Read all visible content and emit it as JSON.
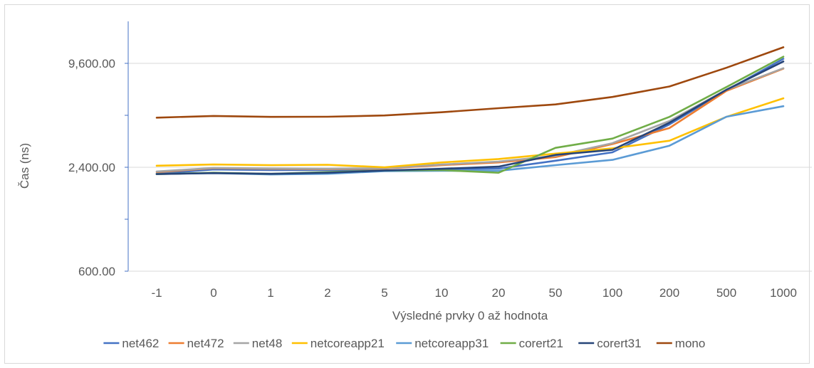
{
  "chart_data": {
    "type": "line",
    "title": "",
    "xlabel": "Výsledné prvky 0 až hodnota",
    "ylabel": "Čas (ns)",
    "y_scale": "log2",
    "ylim": [
      600,
      19200
    ],
    "y_ticks": [
      600,
      2400,
      9600
    ],
    "y_tick_labels": [
      "600.00",
      "2,400.00",
      "9,600.00"
    ],
    "categories": [
      "-1",
      "0",
      "1",
      "2",
      "5",
      "10",
      "20",
      "50",
      "100",
      "200",
      "500",
      "1000"
    ],
    "grid": "horizontal",
    "legend_position": "bottom",
    "series": [
      {
        "name": "net462",
        "color": "#4472C4",
        "values": [
          2200,
          2330,
          2310,
          2310,
          2300,
          2340,
          2360,
          2620,
          2930,
          4250,
          6700,
          10200
        ]
      },
      {
        "name": "net472",
        "color": "#ED7D31",
        "values": [
          2250,
          2370,
          2350,
          2340,
          2360,
          2470,
          2560,
          2750,
          3270,
          4050,
          6650,
          8950
        ]
      },
      {
        "name": "net48",
        "color": "#A5A5A5",
        "values": [
          2270,
          2380,
          2360,
          2350,
          2370,
          2490,
          2590,
          2800,
          3310,
          4450,
          6750,
          9000
        ]
      },
      {
        "name": "netcoreapp21",
        "color": "#FFC000",
        "values": [
          2450,
          2490,
          2470,
          2480,
          2400,
          2560,
          2680,
          2880,
          3090,
          3420,
          4700,
          6020
        ]
      },
      {
        "name": "netcoreapp31",
        "color": "#5B9BD5",
        "values": [
          2200,
          2220,
          2180,
          2200,
          2280,
          2290,
          2290,
          2470,
          2650,
          3200,
          4710,
          5420
        ]
      },
      {
        "name": "corert21",
        "color": "#70AD47",
        "values": [
          2190,
          2230,
          2200,
          2250,
          2300,
          2310,
          2230,
          3110,
          3520,
          4700,
          7000,
          10500
        ]
      },
      {
        "name": "corert31",
        "color": "#264478",
        "values": [
          2190,
          2220,
          2200,
          2230,
          2300,
          2350,
          2420,
          2830,
          3030,
          4350,
          6750,
          9850
        ]
      },
      {
        "name": "mono",
        "color": "#9E480E",
        "values": [
          4650,
          4760,
          4700,
          4710,
          4790,
          5000,
          5280,
          5550,
          6130,
          7050,
          9050,
          11900
        ]
      }
    ]
  }
}
